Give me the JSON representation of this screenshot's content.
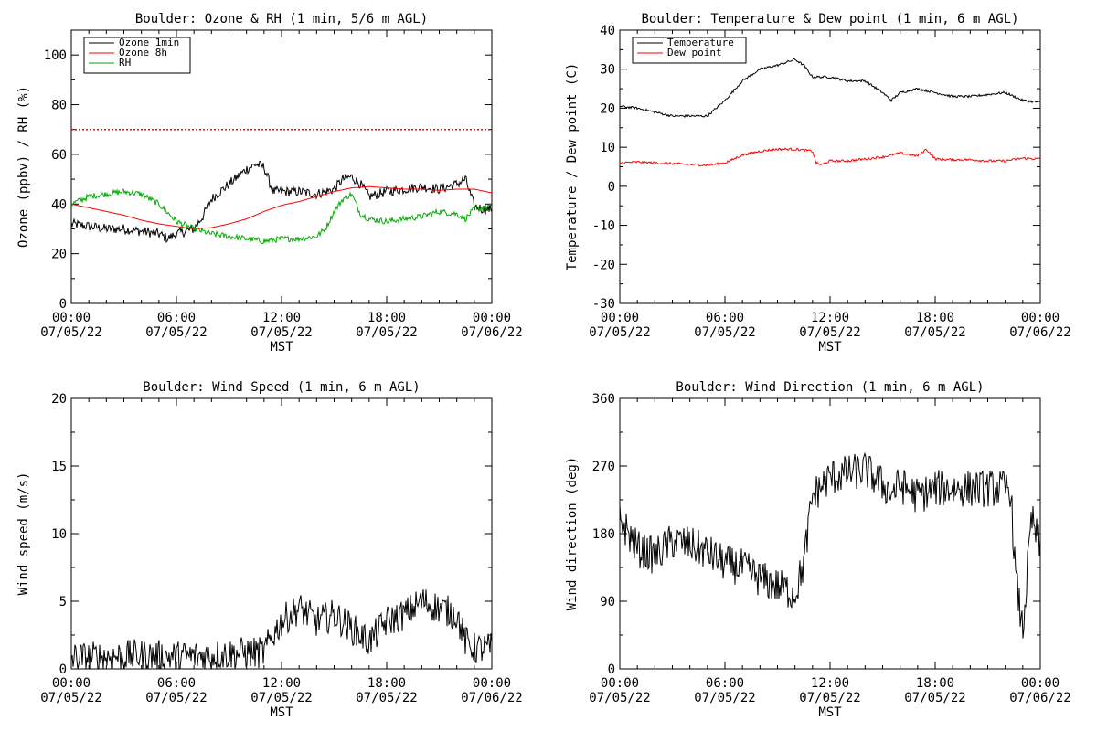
{
  "chart_data": [
    {
      "id": "ozone_rh",
      "type": "line",
      "title": "Boulder: Ozone & RH (1 min, 5/6 m AGL)",
      "ylabel": "Ozone (ppbv) / RH (%)",
      "xlabel": "MST",
      "ylim": [
        0,
        110
      ],
      "yticks": [
        0,
        20,
        40,
        60,
        80,
        100
      ],
      "xlim": [
        0,
        24
      ],
      "xticks": [
        {
          "h": 0,
          "time": "00:00",
          "date": "07/05/22"
        },
        {
          "h": 6,
          "time": "06:00",
          "date": "07/05/22"
        },
        {
          "h": 12,
          "time": "12:00",
          "date": "07/05/22"
        },
        {
          "h": 18,
          "time": "18:00",
          "date": "07/05/22"
        },
        {
          "h": 24,
          "time": "00:00",
          "date": "07/06/22"
        }
      ],
      "legend": [
        "Ozone 1min",
        "Ozone 8h",
        "RH"
      ],
      "legend_position": "top-left",
      "reference_lines": [
        {
          "y": 70,
          "color": "#ff0000",
          "style": "dotted"
        }
      ],
      "series": [
        {
          "name": "Ozone 1min",
          "color": "#000000",
          "noise": 2.0,
          "x": [
            0,
            1,
            2,
            3,
            4,
            5,
            5.5,
            6,
            7,
            7.5,
            8,
            9,
            10,
            10.5,
            11,
            11.5,
            12,
            13,
            14,
            15,
            15.5,
            16,
            16.5,
            17,
            18,
            19,
            20,
            21,
            22,
            22.5,
            23,
            23.5,
            24
          ],
          "y": [
            32,
            31,
            30,
            30,
            29,
            28,
            26,
            28,
            30,
            35,
            42,
            48,
            54,
            56,
            55,
            45,
            45,
            45,
            44,
            46,
            50,
            51,
            48,
            43,
            45,
            46,
            47,
            46,
            48,
            50,
            39,
            38,
            38
          ]
        },
        {
          "name": "Ozone 8h",
          "color": "#ff0000",
          "noise": 0,
          "x": [
            0,
            1,
            2,
            3,
            4,
            5,
            6,
            7,
            8,
            9,
            10,
            11,
            12,
            13,
            14,
            15,
            16,
            17,
            18,
            19,
            20,
            21,
            22,
            23,
            24
          ],
          "y": [
            40,
            38.5,
            37,
            35.5,
            33.5,
            32,
            31,
            30,
            30.5,
            32,
            34,
            37,
            39.5,
            41,
            43,
            45,
            46.5,
            47,
            46.5,
            46,
            46,
            45.5,
            46,
            46,
            44.5
          ]
        },
        {
          "name": "RH",
          "color": "#00aa00",
          "noise": 1.2,
          "x": [
            0,
            1,
            2,
            3,
            4,
            5,
            6,
            7,
            8,
            9,
            10,
            11,
            12,
            13,
            14,
            14.5,
            15,
            15.5,
            16,
            16.5,
            17,
            18,
            19,
            20,
            21,
            22,
            22.5,
            23,
            24
          ],
          "y": [
            40,
            43,
            44,
            45,
            44,
            40,
            33,
            30,
            28,
            27,
            26,
            25,
            26,
            26,
            27,
            30,
            37,
            42,
            44,
            36,
            34,
            33,
            34,
            35,
            37,
            36,
            34,
            38,
            39
          ]
        }
      ]
    },
    {
      "id": "temp_dew",
      "type": "line",
      "title": "Boulder: Temperature & Dew point (1 min, 6 m AGL)",
      "ylabel": "Temperature / Dew point (C)",
      "xlabel": "MST",
      "ylim": [
        -30,
        40
      ],
      "yticks": [
        -30,
        -20,
        -10,
        0,
        10,
        20,
        30,
        40
      ],
      "xlim": [
        0,
        24
      ],
      "xticks": [
        {
          "h": 0,
          "time": "00:00",
          "date": "07/05/22"
        },
        {
          "h": 6,
          "time": "06:00",
          "date": "07/05/22"
        },
        {
          "h": 12,
          "time": "12:00",
          "date": "07/05/22"
        },
        {
          "h": 18,
          "time": "18:00",
          "date": "07/05/22"
        },
        {
          "h": 24,
          "time": "00:00",
          "date": "07/06/22"
        }
      ],
      "legend": [
        "Temperature",
        "Dew point"
      ],
      "legend_position": "top-left",
      "series": [
        {
          "name": "Temperature",
          "color": "#000000",
          "noise": 0.3,
          "x": [
            0,
            1,
            2,
            3,
            4,
            5,
            6,
            7,
            8,
            9,
            10,
            10.5,
            11,
            12,
            13,
            14,
            15,
            15.5,
            16,
            17,
            18,
            19,
            20,
            21,
            22,
            23,
            24
          ],
          "y": [
            20.5,
            20,
            19,
            18,
            18,
            18,
            22,
            27,
            30,
            31,
            32.5,
            31,
            28,
            28,
            27,
            27,
            24,
            22,
            24,
            25,
            24,
            23,
            23,
            23.5,
            24,
            22,
            21.5
          ]
        },
        {
          "name": "Dew point",
          "color": "#ff0000",
          "noise": 0.3,
          "x": [
            0,
            1,
            2,
            3,
            4,
            5,
            6,
            7,
            8,
            9,
            10,
            11,
            11.2,
            11.5,
            12,
            13,
            14,
            15,
            16,
            17,
            17.5,
            18,
            19,
            20,
            21,
            22,
            23,
            24
          ],
          "y": [
            6,
            6.2,
            6,
            5.8,
            5.6,
            5.4,
            6,
            8,
            9,
            9.5,
            9.5,
            9,
            6,
            5.5,
            6.5,
            6.5,
            7,
            7.5,
            8.5,
            7.8,
            9.5,
            7,
            6.8,
            6.8,
            6.5,
            6.5,
            7.2,
            7
          ]
        }
      ]
    },
    {
      "id": "wind_speed",
      "type": "line",
      "title": "Boulder: Wind Speed (1 min, 6 m AGL)",
      "ylabel": "Wind speed (m/s)",
      "xlabel": "MST",
      "ylim": [
        0,
        20
      ],
      "yticks": [
        0,
        5,
        10,
        15,
        20
      ],
      "xlim": [
        0,
        24
      ],
      "xticks": [
        {
          "h": 0,
          "time": "00:00",
          "date": "07/05/22"
        },
        {
          "h": 6,
          "time": "06:00",
          "date": "07/05/22"
        },
        {
          "h": 12,
          "time": "12:00",
          "date": "07/05/22"
        },
        {
          "h": 18,
          "time": "18:00",
          "date": "07/05/22"
        },
        {
          "h": 24,
          "time": "00:00",
          "date": "07/06/22"
        }
      ],
      "series": [
        {
          "name": "",
          "color": "#000000",
          "noise": 1.2,
          "floor": 0,
          "x": [
            0,
            2,
            4,
            6,
            8,
            10,
            11,
            11.5,
            12,
            13,
            14,
            15,
            16,
            17,
            18,
            19,
            20,
            21,
            22,
            22.5,
            23,
            24
          ],
          "y": [
            0.8,
            0.9,
            1.0,
            0.9,
            1.0,
            1.2,
            1.2,
            2.5,
            3.5,
            4.5,
            3.5,
            4.0,
            3.0,
            2.0,
            3.5,
            4.0,
            5.0,
            4.5,
            4.0,
            2.0,
            1.5,
            1.5
          ]
        }
      ]
    },
    {
      "id": "wind_dir",
      "type": "line",
      "title": "Boulder: Wind Direction (1 min, 6 m AGL)",
      "ylabel": "Wind direction (deg)",
      "xlabel": "MST",
      "ylim": [
        0,
        360
      ],
      "yticks": [
        0,
        90,
        180,
        270,
        360
      ],
      "xlim": [
        0,
        24
      ],
      "xticks": [
        {
          "h": 0,
          "time": "00:00",
          "date": "07/05/22"
        },
        {
          "h": 6,
          "time": "06:00",
          "date": "07/05/22"
        },
        {
          "h": 12,
          "time": "12:00",
          "date": "07/05/22"
        },
        {
          "h": 18,
          "time": "18:00",
          "date": "07/05/22"
        },
        {
          "h": 24,
          "time": "00:00",
          "date": "07/06/22"
        }
      ],
      "series": [
        {
          "name": "",
          "color": "#000000",
          "noise": 25,
          "floor": 0,
          "x": [
            0,
            1,
            2,
            3,
            4,
            5,
            6,
            7,
            8,
            9,
            10,
            10.5,
            11,
            12,
            13,
            14,
            15,
            15.5,
            16,
            17,
            18,
            19,
            20,
            21,
            22,
            22.3,
            22.6,
            23,
            23.5,
            24
          ],
          "y": [
            200,
            160,
            150,
            170,
            165,
            155,
            140,
            135,
            120,
            110,
            100,
            140,
            230,
            255,
            260,
            265,
            245,
            235,
            245,
            230,
            240,
            240,
            240,
            240,
            240,
            240,
            120,
            50,
            200,
            160
          ]
        }
      ]
    }
  ]
}
